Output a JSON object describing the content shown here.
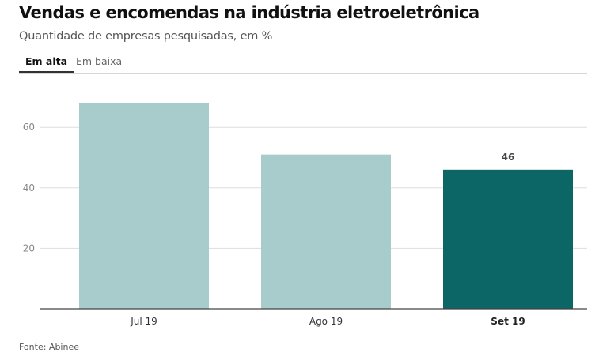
{
  "header": {
    "title": "Vendas e encomendas na indústria eletroeletrônica",
    "subtitle": "Quantidade de empresas pesquisadas, em %"
  },
  "tabs": [
    {
      "label": "Em alta",
      "active": true
    },
    {
      "label": "Em baixa",
      "active": false
    }
  ],
  "footer": {
    "source": "Fonte: Abinee"
  },
  "colors": {
    "bar_default": "#a8cbcb",
    "bar_highlight": "#0d6666",
    "grid": "#dddddd",
    "axis": "#444444"
  },
  "chart_data": {
    "type": "bar",
    "title": "Vendas e encomendas na indústria eletroeletrônica",
    "subtitle": "Quantidade de empresas pesquisadas, em %",
    "categories": [
      "Jul 19",
      "Ago 19",
      "Set 19"
    ],
    "values": [
      68,
      51,
      46
    ],
    "highlight_index": 2,
    "data_labels": [
      null,
      null,
      "46"
    ],
    "xlabel": "",
    "ylabel": "",
    "ylim": [
      0,
      70
    ],
    "yticks": [
      20,
      40,
      60
    ],
    "grid": true,
    "legend": "none"
  }
}
